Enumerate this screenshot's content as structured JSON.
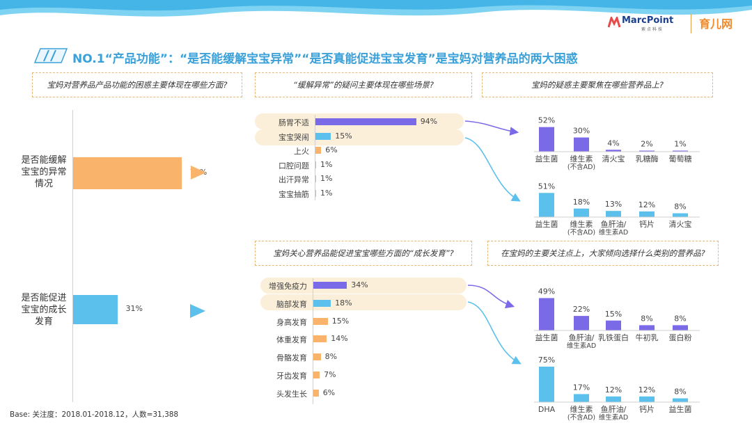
{
  "header": {
    "logo_marcpoint": "MarcPoint",
    "logo_marcpoint_sub": "索点科技",
    "logo_yer": "育儿网",
    "title": "NO.1“产品功能”：“是否能缓解宝宝异常”“是否真能促进宝宝发育”是宝妈对营养品的两大困惑"
  },
  "questions": {
    "q1": "宝妈对营养品产品功能的困惑主要体现在哪些方面?",
    "q2": "“缓解异常”的疑问主要体现在哪些场景?",
    "q3": "宝妈的疑惑主要聚焦在哪些营养品上?",
    "q4": "宝妈关心营养品能促进宝宝哪些方面的“成长发育”?",
    "q5": "在宝妈的主要关注点上，大家倾向选择什么类别的营养品?"
  },
  "colors": {
    "orange": "#f9b36a",
    "blue": "#5bc0eb",
    "purple": "#7b6ae8",
    "title": "#3aa0d8",
    "pill": "#fbefd9"
  },
  "footer": "Base: 关注度：2018.01-2018.12，人数=31,388",
  "chart_data": [
    {
      "id": "concerns",
      "type": "bar",
      "orientation": "horizontal",
      "categories": [
        "是否能缓解宝宝的异常情况",
        "是否能促进宝宝的成长发育"
      ],
      "values": [
        76,
        31
      ],
      "value_labels": [
        "76%",
        "31%"
      ],
      "colors": [
        "#f9b36a",
        "#5bc0eb"
      ]
    },
    {
      "id": "abnormal_scenes",
      "type": "bar",
      "orientation": "horizontal",
      "categories": [
        "肠胃不适",
        "宝宝哭闹",
        "上火",
        "口腔问题",
        "出汗异常",
        "宝宝抽筋"
      ],
      "values": [
        94,
        15,
        6,
        1,
        1,
        1
      ],
      "value_labels": [
        "94%",
        "15%",
        "6%",
        "1%",
        "1%",
        "1%"
      ],
      "colors": [
        "#7b6ae8",
        "#5bc0eb",
        "#f9b36a",
        "#f9b36a",
        "#f9b36a",
        "#f9b36a"
      ],
      "highlighted": [
        "肠胃不适",
        "宝宝哭闹"
      ]
    },
    {
      "id": "growth_aspects",
      "type": "bar",
      "orientation": "horizontal",
      "categories": [
        "增强免疫力",
        "脑部发育",
        "身高发育",
        "体重发育",
        "骨骼发育",
        "牙齿发育",
        "头发生长"
      ],
      "values": [
        34,
        18,
        15,
        14,
        8,
        7,
        6
      ],
      "value_labels": [
        "34%",
        "18%",
        "15%",
        "14%",
        "8%",
        "7%",
        "6%"
      ],
      "colors": [
        "#7b6ae8",
        "#5bc0eb",
        "#f9b36a",
        "#f9b36a",
        "#f9b36a",
        "#f9b36a",
        "#f9b36a"
      ],
      "highlighted": [
        "增强免疫力",
        "脑部发育"
      ]
    },
    {
      "id": "products_gut",
      "type": "bar",
      "categories": [
        "益生菌",
        "维生素\n(不含AD)",
        "清火宝",
        "乳糖酶",
        "葡萄糖"
      ],
      "values": [
        52,
        30,
        4,
        2,
        1
      ],
      "value_labels": [
        "52%",
        "30%",
        "4%",
        "2%",
        "1%"
      ],
      "color": "#7b6ae8"
    },
    {
      "id": "products_crying",
      "type": "bar",
      "categories": [
        "益生菌",
        "维生素\n(不含AD)",
        "鱼肝油/\n维生素AD",
        "钙片",
        "清火宝"
      ],
      "values": [
        51,
        18,
        13,
        12,
        8
      ],
      "value_labels": [
        "51%",
        "18%",
        "13%",
        "12%",
        "8%"
      ],
      "color": "#5bc0eb"
    },
    {
      "id": "products_immunity",
      "type": "bar",
      "categories": [
        "益生菌",
        "鱼肝油/\n维生素AD",
        "乳铁蛋白",
        "牛初乳",
        "蛋白粉"
      ],
      "values": [
        49,
        22,
        15,
        8,
        8
      ],
      "value_labels": [
        "49%",
        "22%",
        "15%",
        "8%",
        "8%"
      ],
      "color": "#7b6ae8"
    },
    {
      "id": "products_brain",
      "type": "bar",
      "categories": [
        "DHA",
        "维生素\n(不含AD)",
        "鱼肝油/\n维生素AD",
        "钙片",
        "益生菌"
      ],
      "values": [
        75,
        17,
        12,
        12,
        8
      ],
      "value_labels": [
        "75%",
        "17%",
        "12%",
        "12%",
        "8%"
      ],
      "color": "#5bc0eb"
    }
  ]
}
